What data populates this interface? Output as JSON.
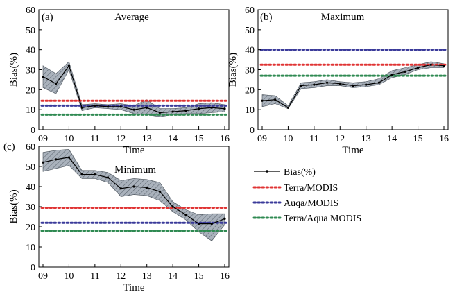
{
  "colors": {
    "bias": "#000000",
    "band_fill": "#aab2bc",
    "band_hatch": "#5d6670",
    "terra": "#e03434",
    "aqua": "#3a3a9a",
    "terra_aqua": "#2f8a52"
  },
  "legend": {
    "entries": [
      {
        "label": "Bias(%)",
        "key": "bias"
      },
      {
        "label": "Terra/MODIS",
        "key": "terra"
      },
      {
        "label": "Auqa/MODIS",
        "key": "aqua"
      },
      {
        "label": "Terra/Aqua MODIS",
        "key": "terra_aqua"
      }
    ]
  },
  "chart_data": [
    {
      "type": "line",
      "panel": "(a)",
      "title": "Average",
      "xlabel": "Time",
      "ylabel": "Bias(%)",
      "ylim": [
        0,
        60
      ],
      "yticks": [
        0,
        10,
        20,
        30,
        40,
        50,
        60
      ],
      "ytick_labels": [
        "0",
        "10",
        "20",
        "30",
        "40",
        "50",
        "60"
      ],
      "xlim": [
        9,
        16
      ],
      "xticks": [
        9,
        10,
        11,
        12,
        13,
        14,
        15,
        16
      ],
      "xtick_labels": [
        "09",
        "10",
        "11",
        "12",
        "13",
        "14",
        "15",
        "16"
      ],
      "x": [
        9,
        9.5,
        10,
        10.5,
        11,
        11.5,
        12,
        12.5,
        13,
        13.5,
        14,
        14.5,
        15,
        15.5,
        16
      ],
      "series": [
        {
          "name": "Bias(%)",
          "values": [
            26.5,
            23,
            32,
            11,
            12,
            11.5,
            11.5,
            10,
            11,
            8.5,
            9,
            9.5,
            10.5,
            11,
            10.5
          ]
        }
      ],
      "band_upper": [
        32,
        28,
        34,
        12.5,
        13,
        12.5,
        13,
        12,
        15,
        10.5,
        10.5,
        11,
        13,
        13.5,
        12.5
      ],
      "band_lower": [
        21,
        18,
        30,
        9.5,
        11,
        10.5,
        10,
        8,
        7.5,
        6.5,
        7.5,
        8,
        8,
        8.5,
        9
      ],
      "references": [
        {
          "name": "Terra/MODIS",
          "value": 14.5
        },
        {
          "name": "Auqa/MODIS",
          "value": 12
        },
        {
          "name": "Terra/Aqua MODIS",
          "value": 7.5
        }
      ]
    },
    {
      "type": "line",
      "panel": "(b)",
      "title": "Maximum",
      "xlabel": "Time",
      "ylabel": "Bias(%)",
      "ylim": [
        0,
        60
      ],
      "yticks": [
        0,
        10,
        20,
        30,
        40,
        50,
        60
      ],
      "ytick_labels": [
        "0",
        "10",
        "20",
        "30",
        "40",
        "50",
        "60"
      ],
      "xlim": [
        9,
        16
      ],
      "xticks": [
        9,
        10,
        11,
        12,
        13,
        14,
        15,
        16
      ],
      "xtick_labels": [
        "09",
        "10",
        "11",
        "12",
        "13",
        "14",
        "15",
        "16"
      ],
      "x": [
        9,
        9.5,
        10,
        10.5,
        11,
        11.5,
        12,
        12.5,
        13,
        13.5,
        14,
        14.5,
        15,
        15.5,
        16
      ],
      "series": [
        {
          "name": "Bias(%)",
          "values": [
            14.5,
            15,
            11,
            22,
            22.5,
            23.5,
            23,
            22,
            22.5,
            23.5,
            27.5,
            29,
            31,
            32.5,
            32
          ]
        }
      ],
      "band_upper": [
        17.5,
        17,
        12,
        23.5,
        24,
        25,
        24,
        23.5,
        24,
        25.5,
        29.5,
        31,
        32.5,
        34,
        33
      ],
      "band_lower": [
        11.5,
        13,
        10.5,
        20.5,
        21,
        22,
        22,
        21,
        21.5,
        22.5,
        26,
        27.5,
        30,
        31,
        31
      ],
      "references": [
        {
          "name": "Terra/MODIS",
          "value": 32.5
        },
        {
          "name": "Auqa/MODIS",
          "value": 40
        },
        {
          "name": "Terra/Aqua MODIS",
          "value": 27
        }
      ]
    },
    {
      "type": "line",
      "panel": "(c)",
      "title": "Minimum",
      "xlabel": "Time",
      "ylabel": "Bias(%)",
      "ylim": [
        0,
        60
      ],
      "yticks": [
        0,
        10,
        20,
        30,
        40,
        50,
        60
      ],
      "ytick_labels": [
        "0",
        "10",
        "20",
        "30",
        "40",
        "50",
        "60"
      ],
      "xlim": [
        9,
        16
      ],
      "xticks": [
        9,
        10,
        11,
        12,
        13,
        14,
        15,
        16
      ],
      "xtick_labels": [
        "09",
        "10",
        "11",
        "12",
        "13",
        "14",
        "15",
        "16"
      ],
      "x": [
        9,
        9.5,
        10,
        10.5,
        11,
        11.5,
        12,
        12.5,
        13,
        13.5,
        14,
        14.5,
        15,
        15.5,
        16
      ],
      "series": [
        {
          "name": "Bias(%)",
          "values": [
            52,
            53.5,
            54.5,
            46,
            46,
            44.5,
            39,
            40,
            39.5,
            37.5,
            30,
            26,
            21.5,
            21.5,
            24
          ]
        }
      ],
      "band_upper": [
        57,
        58,
        58.5,
        48,
        48,
        47,
        43,
        44,
        43.5,
        42,
        32.5,
        28.5,
        26,
        26.5,
        26.5
      ],
      "band_lower": [
        47.5,
        49,
        50.5,
        44,
        44,
        42,
        35,
        36,
        35.5,
        33,
        27.5,
        23.5,
        17.5,
        13,
        21
      ],
      "references": [
        {
          "name": "Terra/MODIS",
          "value": 29.5
        },
        {
          "name": "Auqa/MODIS",
          "value": 22
        },
        {
          "name": "Terra/Aqua MODIS",
          "value": 18
        }
      ]
    }
  ]
}
